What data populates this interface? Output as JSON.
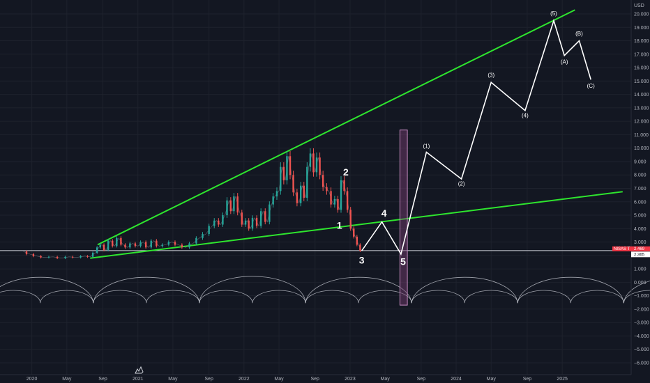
{
  "window": {
    "currency_label": "USD"
  },
  "chart_data": {
    "type": "line",
    "y_axis": {
      "min": -6,
      "max": 20,
      "ticks": [
        20,
        19,
        18,
        17,
        16,
        15,
        14,
        13,
        12,
        11,
        10,
        9,
        8,
        7,
        6,
        5,
        4,
        3,
        2,
        1,
        0,
        -1,
        -2,
        -3,
        -4,
        -5,
        -6
      ],
      "tick_labels": [
        "20.000",
        "19.000",
        "18.000",
        "17.000",
        "16.000",
        "15.000",
        "14.000",
        "13.000",
        "12.000",
        "11.000",
        "10.000",
        "9.000",
        "8.000",
        "7.000",
        "6.000",
        "5.000",
        "4.000",
        "3.000",
        "",
        "1.000",
        "0.000",
        "−1.000",
        "−2.000",
        "−3.000",
        "−4.000",
        "−5.000",
        "−6.000"
      ]
    },
    "x_axis": {
      "min": 2019.7,
      "max": 2025.65,
      "ticks": [
        2020.0,
        2020.33,
        2020.67,
        2021.0,
        2021.33,
        2021.67,
        2022.0,
        2022.33,
        2022.67,
        2023.0,
        2023.33,
        2023.67,
        2024.0,
        2024.33,
        2024.67,
        2025.0
      ],
      "tick_labels": [
        "2020",
        "May",
        "Sep",
        "2021",
        "May",
        "Sep",
        "2022",
        "May",
        "Sep",
        "2023",
        "May",
        "Sep",
        "2024",
        "May",
        "Sep",
        "2025"
      ]
    },
    "current_price": {
      "value": 2.365,
      "label": "2.365",
      "tag_label": "NISAS T",
      "tag_value": "2.469",
      "color": "#f23645"
    },
    "price_series": [
      [
        2019.92,
        2.3
      ],
      [
        2019.98,
        2.1
      ],
      [
        2020.05,
        1.95
      ],
      [
        2020.12,
        1.85
      ],
      [
        2020.2,
        1.9
      ],
      [
        2020.28,
        1.8
      ],
      [
        2020.35,
        1.9
      ],
      [
        2020.42,
        1.85
      ],
      [
        2020.5,
        1.95
      ],
      [
        2020.55,
        1.9
      ],
      [
        2020.6,
        2.2
      ],
      [
        2020.63,
        2.6
      ],
      [
        2020.66,
        2.8
      ],
      [
        2020.7,
        2.4
      ],
      [
        2020.74,
        3.1
      ],
      [
        2020.78,
        2.7
      ],
      [
        2020.82,
        3.3
      ],
      [
        2020.86,
        2.8
      ],
      [
        2020.9,
        2.6
      ],
      [
        2020.95,
        2.9
      ],
      [
        2021.0,
        2.7
      ],
      [
        2021.05,
        3.0
      ],
      [
        2021.1,
        2.6
      ],
      [
        2021.15,
        3.1
      ],
      [
        2021.2,
        2.7
      ],
      [
        2021.26,
        2.8
      ],
      [
        2021.32,
        3.0
      ],
      [
        2021.38,
        2.8
      ],
      [
        2021.45,
        2.6
      ],
      [
        2021.52,
        2.9
      ],
      [
        2021.58,
        3.3
      ],
      [
        2021.64,
        3.6
      ],
      [
        2021.7,
        4.2
      ],
      [
        2021.74,
        4.6
      ],
      [
        2021.78,
        4.3
      ],
      [
        2021.82,
        5.0
      ],
      [
        2021.86,
        6.1
      ],
      [
        2021.89,
        5.3
      ],
      [
        2021.92,
        6.4
      ],
      [
        2021.96,
        5.2
      ],
      [
        2022.0,
        4.3
      ],
      [
        2022.03,
        4.6
      ],
      [
        2022.06,
        4.0
      ],
      [
        2022.1,
        4.8
      ],
      [
        2022.14,
        4.2
      ],
      [
        2022.18,
        5.3
      ],
      [
        2022.22,
        4.5
      ],
      [
        2022.26,
        5.8
      ],
      [
        2022.29,
        6.4
      ],
      [
        2022.33,
        6.8
      ],
      [
        2022.36,
        8.6
      ],
      [
        2022.39,
        7.6
      ],
      [
        2022.42,
        9.4
      ],
      [
        2022.45,
        8.0
      ],
      [
        2022.48,
        6.7
      ],
      [
        2022.52,
        5.9
      ],
      [
        2022.55,
        7.2
      ],
      [
        2022.58,
        6.3
      ],
      [
        2022.61,
        8.6
      ],
      [
        2022.64,
        9.6
      ],
      [
        2022.67,
        8.2
      ],
      [
        2022.7,
        9.3
      ],
      [
        2022.73,
        8.0
      ],
      [
        2022.76,
        7.1
      ],
      [
        2022.8,
        6.8
      ],
      [
        2022.84,
        5.8
      ],
      [
        2022.87,
        6.2
      ],
      [
        2022.9,
        5.4
      ],
      [
        2022.93,
        7.6
      ],
      [
        2022.96,
        6.8
      ],
      [
        2022.99,
        5.4
      ],
      [
        2023.02,
        4.0
      ],
      [
        2023.05,
        3.4
      ],
      [
        2023.08,
        2.8
      ],
      [
        2023.11,
        2.35
      ]
    ],
    "upper_trendline": [
      [
        2020.62,
        2.8
      ],
      [
        2025.12,
        20.3
      ]
    ],
    "lower_trendline": [
      [
        2020.55,
        1.8
      ],
      [
        2025.57,
        6.75
      ]
    ],
    "horizontal_line": 2.365,
    "projection_path": [
      [
        2023.11,
        2.35
      ],
      [
        2023.3,
        4.5
      ],
      [
        2023.48,
        2.1
      ],
      [
        2023.72,
        9.7
      ],
      [
        2024.05,
        7.7
      ],
      [
        2024.33,
        14.9
      ],
      [
        2024.65,
        12.8
      ],
      [
        2024.92,
        19.5
      ],
      [
        2025.02,
        16.9
      ],
      [
        2025.16,
        18.0
      ],
      [
        2025.27,
        15.1
      ]
    ],
    "wave_labels": [
      {
        "text": "1",
        "x": 2022.9,
        "y": 4.0,
        "size": "big"
      },
      {
        "text": "2",
        "x": 2022.96,
        "y": 7.95,
        "size": "big"
      },
      {
        "text": "3",
        "x": 2023.11,
        "y": 1.4,
        "size": "big"
      },
      {
        "text": "4",
        "x": 2023.32,
        "y": 4.9,
        "size": "big"
      },
      {
        "text": "5",
        "x": 2023.5,
        "y": 1.3,
        "size": "big"
      },
      {
        "text": "(1)",
        "x": 2023.72,
        "y": 10.0,
        "size": "small"
      },
      {
        "text": "(2)",
        "x": 2024.05,
        "y": 7.2,
        "size": "small"
      },
      {
        "text": "(3)",
        "x": 2024.33,
        "y": 15.3,
        "size": "small"
      },
      {
        "text": "(4)",
        "x": 2024.65,
        "y": 12.3,
        "size": "small"
      },
      {
        "text": "(5)",
        "x": 2024.92,
        "y": 19.9,
        "size": "small"
      },
      {
        "text": "(A)",
        "x": 2025.02,
        "y": 16.3,
        "size": "small"
      },
      {
        "text": "(B)",
        "x": 2025.16,
        "y": 18.4,
        "size": "small"
      },
      {
        "text": "(C)",
        "x": 2025.27,
        "y": 14.5,
        "size": "small"
      }
    ],
    "time_marker": {
      "x_start": 2023.47,
      "x_end": 2023.54,
      "y_top": 11.35,
      "y_bottom": -1.7,
      "color": "#7b3d74"
    },
    "cycles_large": {
      "start": 2019.58,
      "period": 1.0,
      "amplitude": 2.0,
      "baseline": -1.55
    },
    "cycles_small": {
      "start": 2019.58,
      "period": 0.5,
      "amplitude": 0.95,
      "baseline": -1.55
    },
    "colors": {
      "trendline": "#2ee52e",
      "price_up": "#26a69a",
      "price_down": "#ef5350",
      "projection": "#ffffff",
      "cycles": "#d1d4dc",
      "background": "#131722"
    }
  }
}
